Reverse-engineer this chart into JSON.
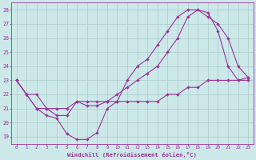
{
  "xlabel": "Windchill (Refroidissement éolien,°C)",
  "bg_color": "#cce8e8",
  "line_color": "#993399",
  "grid_color": "#aacccc",
  "xlim": [
    -0.5,
    23.5
  ],
  "ylim": [
    18.5,
    28.5
  ],
  "yticks": [
    19,
    20,
    21,
    22,
    23,
    24,
    25,
    26,
    27,
    28
  ],
  "xticks": [
    0,
    1,
    2,
    3,
    4,
    5,
    6,
    7,
    8,
    9,
    10,
    11,
    12,
    13,
    14,
    15,
    16,
    17,
    18,
    19,
    20,
    21,
    22,
    23
  ],
  "line1": {
    "x": [
      0,
      1,
      2,
      3,
      4,
      5,
      6,
      7,
      8,
      9,
      10,
      11,
      12,
      13,
      14,
      15,
      16,
      17,
      18,
      19,
      20,
      21,
      22,
      23
    ],
    "y": [
      23,
      22,
      21,
      21,
      20.5,
      20.5,
      21.5,
      21.2,
      21.2,
      21.5,
      22,
      22.5,
      23,
      23.5,
      24,
      25,
      26,
      27.5,
      28,
      27.5,
      27,
      26,
      24,
      23.2
    ]
  },
  "line2": {
    "x": [
      0,
      1,
      2,
      3,
      4,
      5,
      6,
      7,
      8,
      9,
      10,
      11,
      12,
      13,
      14,
      15,
      16,
      17,
      18,
      19,
      20,
      21,
      22,
      23
    ],
    "y": [
      23,
      22,
      21,
      20.5,
      20.3,
      19.2,
      18.8,
      18.8,
      19.3,
      21,
      21.5,
      23,
      24,
      24.5,
      25.5,
      26.5,
      27.5,
      28,
      28,
      27.8,
      26.5,
      24,
      23,
      23
    ]
  },
  "line3": {
    "x": [
      0,
      1,
      2,
      3,
      4,
      5,
      6,
      7,
      8,
      9,
      10,
      11,
      12,
      13,
      14,
      15,
      16,
      17,
      18,
      19,
      20,
      21,
      22,
      23
    ],
    "y": [
      23,
      22,
      22,
      21,
      21,
      21,
      21.5,
      21.5,
      21.5,
      21.5,
      21.5,
      21.5,
      21.5,
      21.5,
      21.5,
      22,
      22,
      22.5,
      22.5,
      23,
      23,
      23,
      23,
      23.2
    ]
  }
}
